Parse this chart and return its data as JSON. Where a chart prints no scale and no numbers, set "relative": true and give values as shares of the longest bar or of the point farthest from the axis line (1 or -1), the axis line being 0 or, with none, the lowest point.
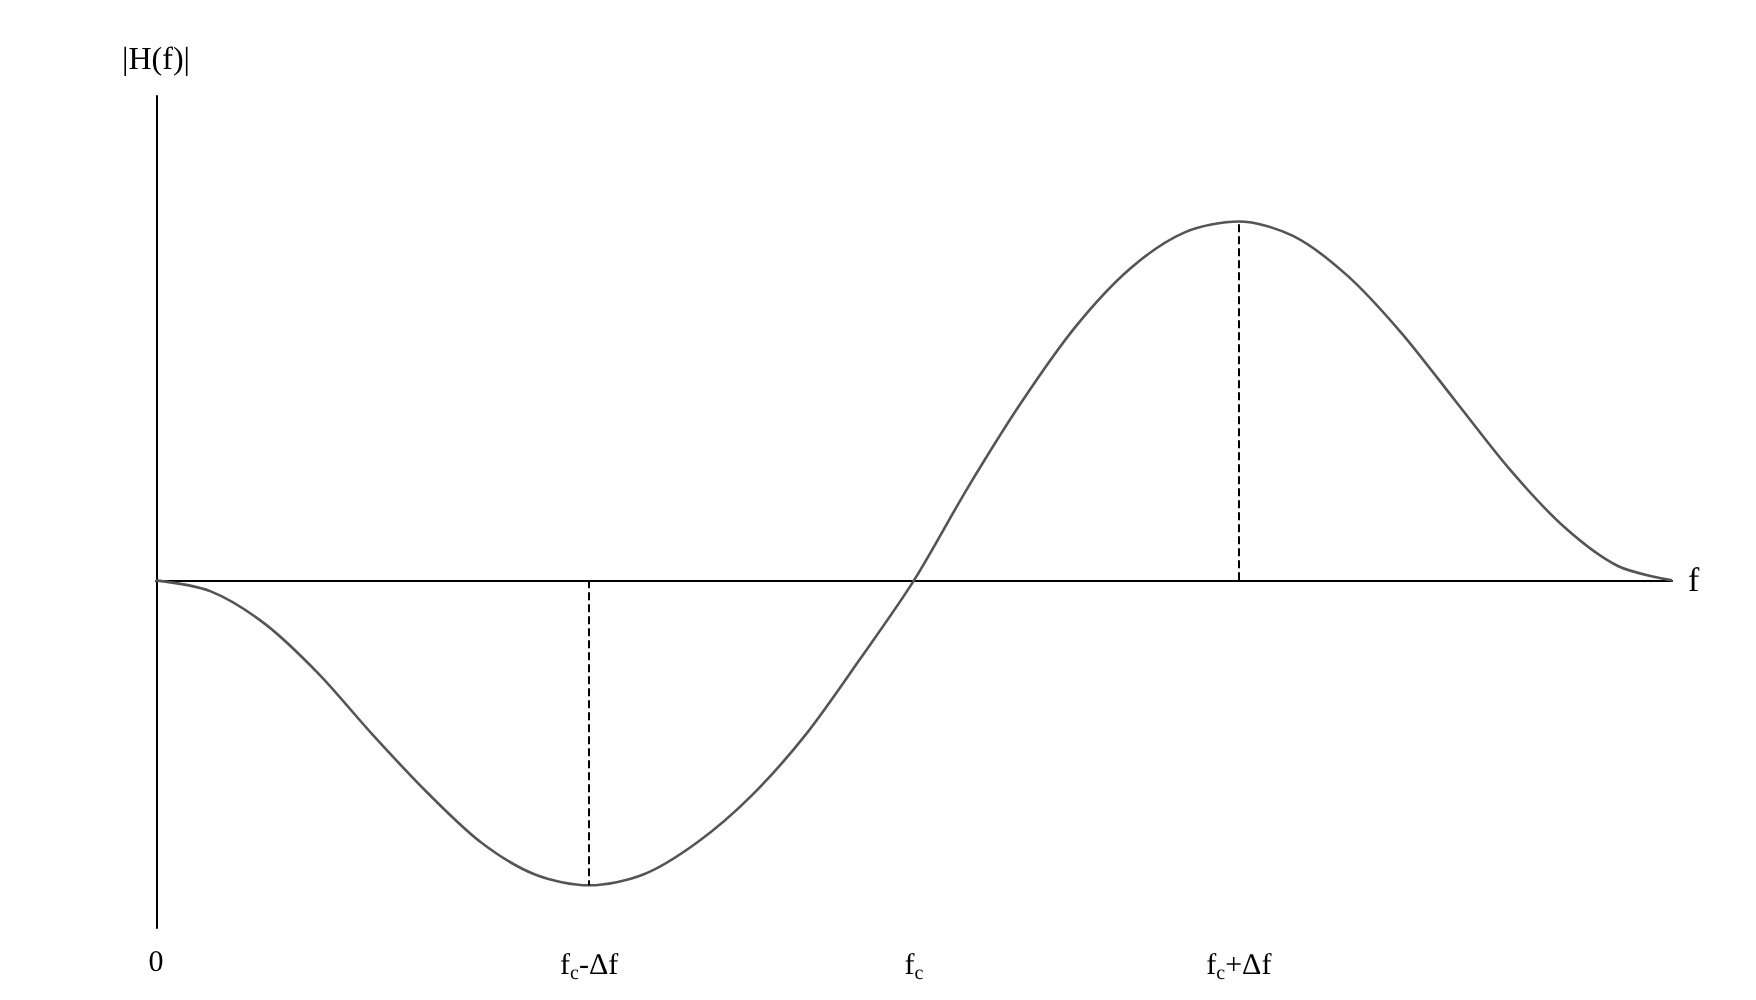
{
  "chart_data": {
    "type": "line",
    "xlabel": "f",
    "ylabel": "|H(f)|",
    "relative": true,
    "marker": "none",
    "line_style": "solid",
    "categories": [
      "0",
      null,
      null,
      null,
      null,
      null,
      null,
      null,
      "f$_{c}$-Δf",
      null,
      null,
      null,
      null,
      null,
      "f$_{c}$",
      null,
      null,
      null,
      null,
      null,
      "f$_{c}$+Δf",
      null,
      null,
      null,
      null,
      null,
      null,
      null,
      null
    ],
    "series": [
      {
        "color": "#555555",
        "values": [
          0,
          -0.03,
          -0.12,
          -0.26,
          -0.43,
          -0.59,
          -0.73,
          -0.82,
          -0.85,
          -0.82,
          -0.73,
          -0.6,
          -0.43,
          -0.22,
          0,
          0.26,
          0.5,
          0.71,
          0.87,
          0.97,
          1,
          0.96,
          0.85,
          0.69,
          0.5,
          0.31,
          0.15,
          0.04,
          0
        ]
      }
    ],
    "ref_lines": [
      {
        "axis": "x",
        "value": "f$_{c}$-Δf",
        "line_style": "dashed",
        "color": "#000000"
      },
      {
        "axis": "x",
        "value": "f$_{c}$+Δf",
        "line_style": "dashed",
        "color": "#000000"
      }
    ]
  }
}
